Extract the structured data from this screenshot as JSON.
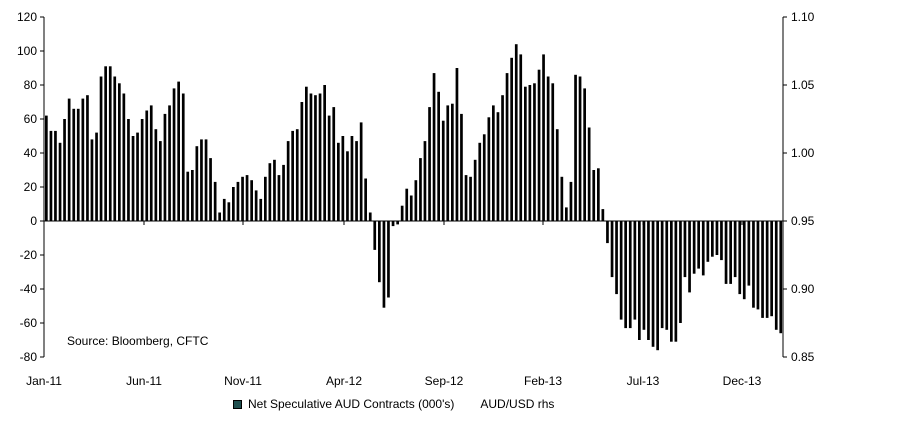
{
  "chart_data": {
    "type": "bar",
    "title": "",
    "source": "Source: Bloomberg, CFTC",
    "xlabel": "",
    "ylabel": "",
    "ylim": [
      -80,
      120
    ],
    "yticks": [
      "120",
      "100",
      "80",
      "60",
      "40",
      "20",
      "0",
      "-20",
      "-40",
      "-60",
      "-80"
    ],
    "y2lim": [
      0.85,
      1.1
    ],
    "y2ticks": [
      "1.10",
      "1.05",
      "1.00",
      "0.95",
      "0.90",
      "0.85"
    ],
    "xticks": [
      "Jan-11",
      "Jun-11",
      "Nov-11",
      "Apr-12",
      "Sep-12",
      "Feb-13",
      "Jul-13",
      "Dec-13"
    ],
    "legend": [
      "Net Speculative AUD Contracts (000's)",
      "AUD/USD rhs"
    ],
    "legend_position": "bottom",
    "bar_color": "#000000",
    "series": [
      {
        "name": "Net Speculative AUD Contracts (000's)",
        "values": [
          62,
          53,
          53,
          46,
          60,
          72,
          66,
          66,
          72,
          74,
          48,
          52,
          85,
          91,
          91,
          85,
          81,
          75,
          60,
          50,
          52,
          60,
          65,
          68,
          54,
          47,
          63,
          68,
          78,
          82,
          75,
          29,
          30,
          44,
          48,
          48,
          37,
          23,
          5,
          13,
          11,
          20,
          23,
          26,
          27,
          24,
          18,
          13,
          26,
          34,
          36,
          27,
          33,
          47,
          53,
          54,
          70,
          79,
          75,
          74,
          75,
          80,
          62,
          67,
          46,
          50,
          41,
          50,
          47,
          58,
          25,
          5,
          -17,
          -36,
          -51,
          -45,
          -3,
          -2,
          9,
          19,
          15,
          24,
          37,
          47,
          67,
          87,
          76,
          59,
          68,
          69,
          90,
          63,
          27,
          26,
          36,
          46,
          51,
          61,
          68,
          64,
          74,
          87,
          96,
          104,
          98,
          79,
          80,
          81,
          89,
          98,
          85,
          81,
          54,
          26,
          8,
          23,
          86,
          85,
          78,
          55,
          30,
          31,
          7,
          -13,
          -33,
          -43,
          -58,
          -63,
          -63,
          -58,
          -70,
          -64,
          -70,
          -74,
          -76,
          -63,
          -64,
          -71,
          -71,
          -60,
          -33,
          -42,
          -31,
          -28,
          -32,
          -24,
          -21,
          -20,
          -23,
          -37,
          -37,
          -33,
          -43,
          -46,
          -38,
          -51,
          -52,
          -57,
          -57,
          -56,
          -64,
          -66
        ]
      }
    ]
  }
}
